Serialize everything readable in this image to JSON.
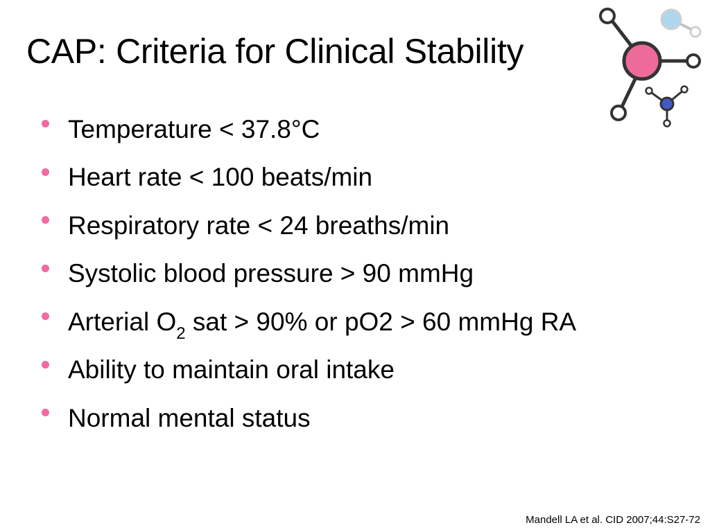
{
  "slide": {
    "title": "CAP: Criteria for Clinical Stability",
    "bullets": [
      "Temperature  < 37.8°C",
      "Heart rate  < 100 beats/min",
      "Respiratory rate  < 24 breaths/min",
      "Systolic blood pressure > 90 mmHg",
      {
        "before": "Arterial O",
        "sub": "2",
        "after": " sat > 90% or pO2 > 60 mmHg RA"
      },
      "Ability to maintain oral intake",
      "Normal mental status"
    ],
    "citation": "Mandell LA et al. CID 2007;44:S27-72"
  },
  "colors": {
    "bullet": "#f06aa4",
    "logo_main_node": "#ee6a99",
    "logo_blue_node": "#4457c6",
    "logo_faded_node": "#4aa8dd",
    "logo_stroke": "#333333"
  },
  "icons": {
    "logo": "molecule-icon"
  }
}
